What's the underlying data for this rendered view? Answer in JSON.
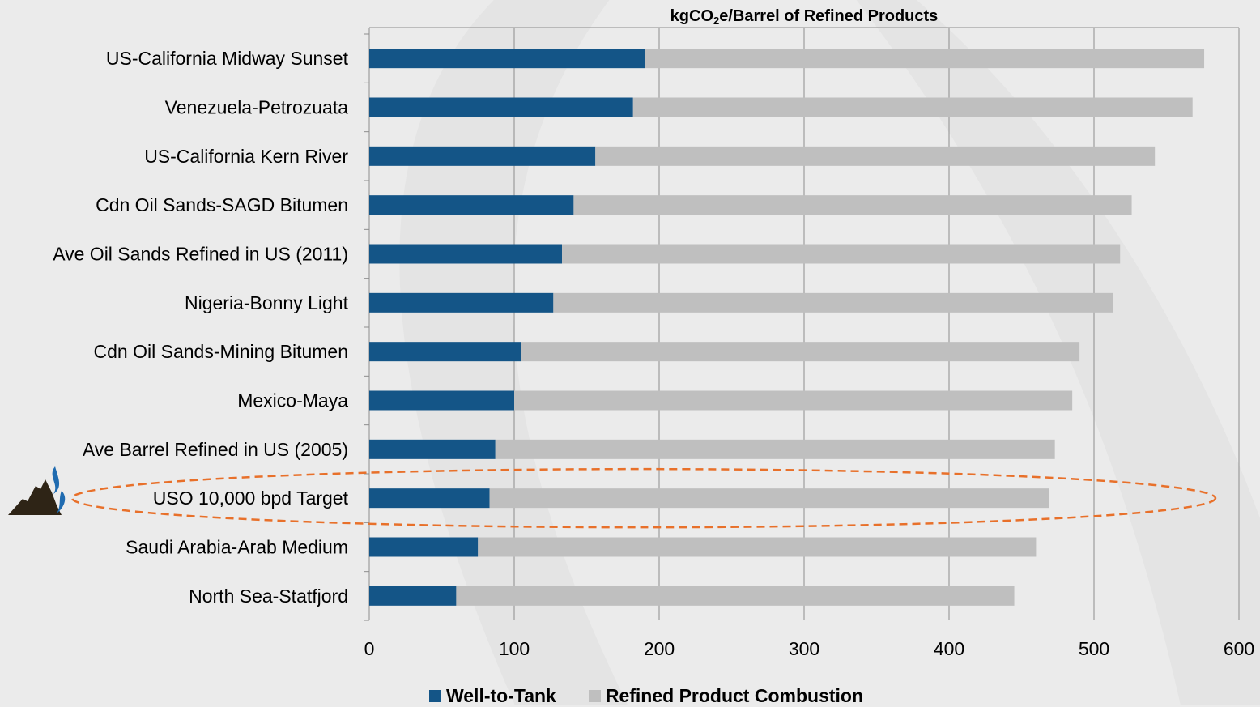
{
  "chart_data": {
    "type": "bar",
    "orientation": "horizontal",
    "stacked": true,
    "title": {
      "prefix": "kgCO",
      "subscript": "2",
      "suffix": "e/Barrel of Refined Products"
    },
    "categories": [
      "US-California Midway Sunset",
      "Venezuela-Petrozuata",
      "US-California Kern River",
      "Cdn Oil Sands-SAGD Bitumen",
      "Ave Oil Sands Refined in US (2011)",
      "Nigeria-Bonny Light",
      "Cdn Oil Sands-Mining Bitumen",
      "Mexico-Maya",
      "Ave Barrel Refined in US (2005)",
      "USO 10,000 bpd Target",
      "Saudi Arabia-Arab Medium",
      "North Sea-Statfjord"
    ],
    "series": [
      {
        "name": "Well-to-Tank",
        "color": "#145587",
        "values": [
          190,
          182,
          156,
          141,
          133,
          127,
          105,
          100,
          87,
          83,
          75,
          60
        ]
      },
      {
        "name": "Refined Product Combustion",
        "color": "#bfbfbf",
        "values": [
          386,
          386,
          386,
          385,
          385,
          386,
          385,
          385,
          386,
          386,
          385,
          385
        ]
      }
    ],
    "xlim": [
      0,
      600
    ],
    "xticks": [
      0,
      100,
      200,
      300,
      400,
      500,
      600
    ],
    "xlabel": "",
    "ylabel": "",
    "grid": "vertical",
    "legend_position": "bottom",
    "highlighted_category": "USO 10,000 bpd Target",
    "highlight_color": "#e8702a"
  }
}
